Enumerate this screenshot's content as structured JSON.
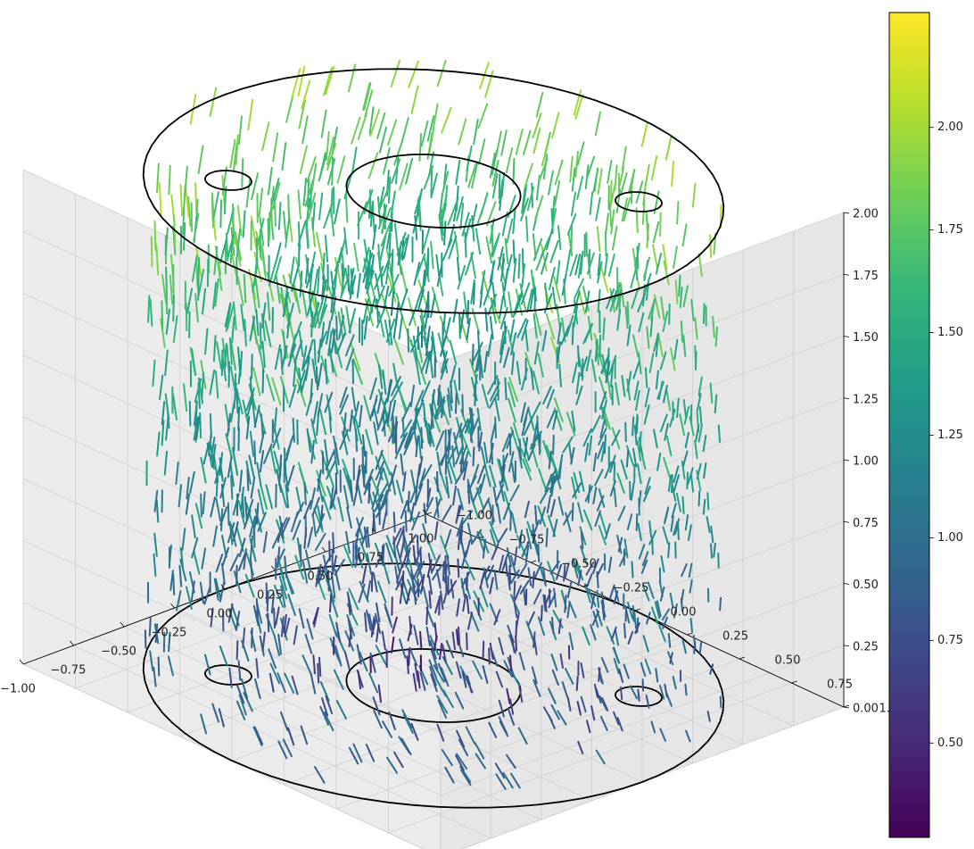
{
  "chart_data": {
    "type": "quiver3d",
    "title": "",
    "x_axis": {
      "label": "",
      "range": [
        -1.0,
        1.0
      ],
      "ticks": [
        -1.0,
        -0.75,
        -0.5,
        -0.25,
        0.0,
        0.25,
        0.5,
        0.75,
        1.0
      ],
      "tick_labels": [
        "−1.00",
        "−0.75",
        "−0.50",
        "−0.25",
        "0.00",
        "0.25",
        "0.50",
        "0.75",
        "1.00"
      ]
    },
    "y_axis": {
      "label": "",
      "range": [
        -1.0,
        1.0
      ],
      "ticks": [
        -1.0,
        -0.75,
        -0.5,
        -0.25,
        0.0,
        0.25,
        0.5,
        0.75,
        1.0
      ],
      "tick_labels": [
        "−1.00",
        "−0.75",
        "−0.50",
        "−0.25",
        "0.00",
        "0.25",
        "0.50",
        "0.75",
        "1.00"
      ]
    },
    "z_axis": {
      "label": "",
      "range": [
        0.0,
        2.0
      ],
      "ticks": [
        0.0,
        0.25,
        0.5,
        0.75,
        1.0,
        1.25,
        1.5,
        1.75,
        2.0
      ],
      "tick_labels": [
        "0.00",
        "0.25",
        "0.50",
        "0.75",
        "1.00",
        "1.25",
        "1.50",
        "1.75",
        "2.00"
      ]
    },
    "grid": true,
    "colormap": "viridis",
    "colorbar": {
      "placement": "right",
      "range": [
        0.27,
        2.28
      ],
      "ticks": [
        0.5,
        0.75,
        1.0,
        1.25,
        1.5,
        1.75,
        2.0
      ],
      "tick_labels": [
        "0.50",
        "0.75",
        "1.00",
        "1.25",
        "1.50",
        "1.75",
        "2.00"
      ]
    },
    "vector_field": {
      "domain": "cylinder",
      "radius": 1.0,
      "z_range": [
        0.0,
        2.0
      ],
      "magnitude_range": [
        0.27,
        2.28
      ]
    },
    "boundary_circles": [
      {
        "z": 0.0,
        "cx": 0.0,
        "cy": 0.0,
        "r": 1.0
      },
      {
        "z": 0.0,
        "cx": 0.0,
        "cy": 0.0,
        "r": 0.3
      },
      {
        "z": 0.0,
        "cx": 0.5,
        "cy": 0.5,
        "r": 0.08
      },
      {
        "z": 0.0,
        "cx": -0.5,
        "cy": -0.5,
        "r": 0.08
      },
      {
        "z": 2.0,
        "cx": 0.0,
        "cy": 0.0,
        "r": 1.0
      },
      {
        "z": 2.0,
        "cx": 0.0,
        "cy": 0.0,
        "r": 0.3
      },
      {
        "z": 2.0,
        "cx": 0.5,
        "cy": 0.5,
        "r": 0.08
      },
      {
        "z": 2.0,
        "cx": -0.5,
        "cy": -0.5,
        "r": 0.08
      }
    ]
  }
}
